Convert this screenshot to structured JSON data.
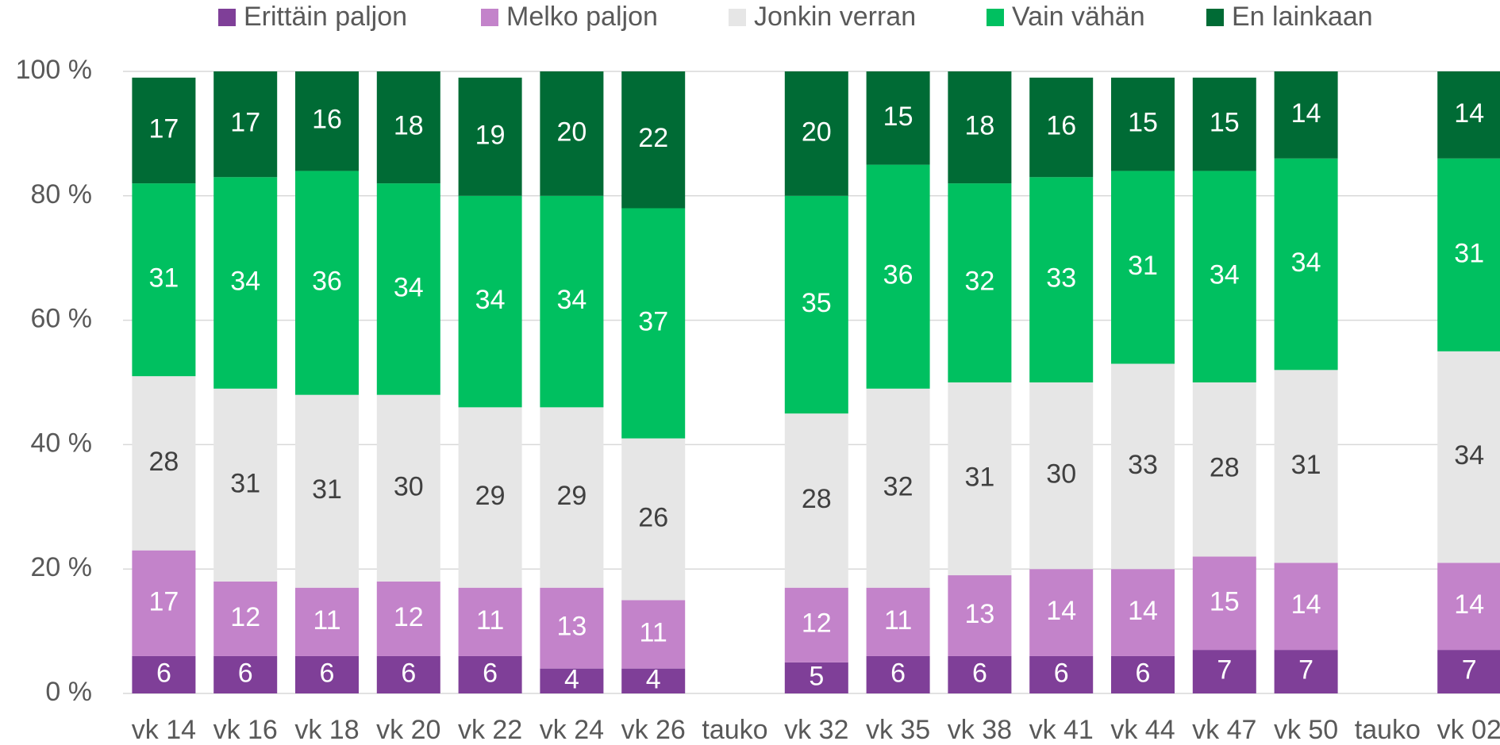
{
  "chart_data": {
    "type": "stacked_bar",
    "categories": [
      "vk 14",
      "vk 16",
      "vk 18",
      "vk 20",
      "vk 22",
      "vk 24",
      "vk 26",
      "tauko",
      "vk 32",
      "vk 35",
      "vk 38",
      "vk 41",
      "vk 44",
      "vk 47",
      "vk 50",
      "tauko",
      "vk 02"
    ],
    "series": [
      {
        "name": "Erittäin paljon",
        "color": "#7f3f98",
        "values": [
          6,
          6,
          6,
          6,
          6,
          4,
          4,
          null,
          5,
          6,
          6,
          6,
          6,
          7,
          7,
          null,
          7
        ]
      },
      {
        "name": "Melko paljon",
        "color": "#c383ca",
        "values": [
          17,
          12,
          11,
          12,
          11,
          13,
          11,
          null,
          12,
          11,
          13,
          14,
          14,
          15,
          14,
          null,
          14
        ]
      },
      {
        "name": "Jonkin verran",
        "color": "#e6e6e6",
        "values": [
          28,
          31,
          31,
          30,
          29,
          29,
          26,
          null,
          28,
          32,
          31,
          30,
          33,
          28,
          31,
          null,
          34
        ]
      },
      {
        "name": "Vain vähän",
        "color": "#00c060",
        "values": [
          31,
          34,
          36,
          34,
          34,
          34,
          37,
          null,
          35,
          36,
          32,
          33,
          31,
          34,
          34,
          null,
          31
        ]
      },
      {
        "name": "En lainkaan",
        "color": "#006b35",
        "values": [
          17,
          17,
          16,
          18,
          19,
          20,
          22,
          null,
          20,
          15,
          18,
          16,
          15,
          15,
          14,
          null,
          14
        ]
      }
    ],
    "ylim": [
      0,
      100
    ],
    "yticks": [
      {
        "value": 0,
        "label": "0 %"
      },
      {
        "value": 20,
        "label": "20 %"
      },
      {
        "value": 40,
        "label": "40 %"
      },
      {
        "value": 60,
        "label": "60 %"
      },
      {
        "value": 80,
        "label": "80 %"
      },
      {
        "value": 100,
        "label": "100 %"
      }
    ],
    "grid": true,
    "legend": "top"
  }
}
